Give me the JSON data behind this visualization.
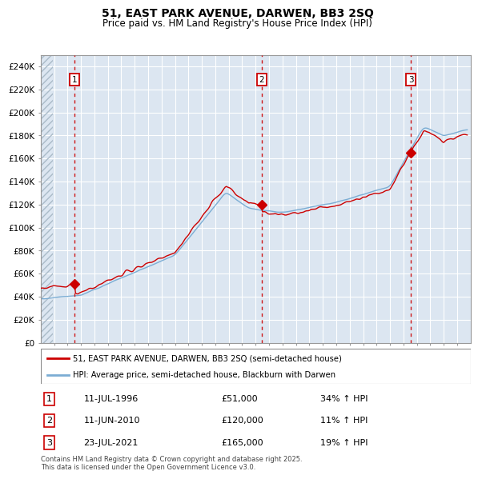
{
  "title1": "51, EAST PARK AVENUE, DARWEN, BB3 2SQ",
  "title2": "Price paid vs. HM Land Registry's House Price Index (HPI)",
  "ylim": [
    0,
    250000
  ],
  "yticks": [
    0,
    20000,
    40000,
    60000,
    80000,
    100000,
    120000,
    140000,
    160000,
    180000,
    200000,
    220000,
    240000
  ],
  "ytick_labels": [
    "£0",
    "£20K",
    "£40K",
    "£60K",
    "£80K",
    "£100K",
    "£120K",
    "£140K",
    "£160K",
    "£180K",
    "£200K",
    "£220K",
    "£240K"
  ],
  "xlim_start": 1994.0,
  "xlim_end": 2026.0,
  "plot_bg_color": "#dce6f1",
  "grid_color": "#ffffff",
  "red_color": "#cc0000",
  "blue_color": "#7badd4",
  "sale1_year": 1996.53,
  "sale1_price": 51000,
  "sale2_year": 2010.44,
  "sale2_price": 120000,
  "sale3_year": 2021.55,
  "sale3_price": 165000,
  "legend1": "51, EAST PARK AVENUE, DARWEN, BB3 2SQ (semi-detached house)",
  "legend2": "HPI: Average price, semi-detached house, Blackburn with Darwen",
  "table_entries": [
    {
      "num": "1",
      "date": "11-JUL-1996",
      "price": "£51,000",
      "change": "34% ↑ HPI"
    },
    {
      "num": "2",
      "date": "11-JUN-2010",
      "price": "£120,000",
      "change": "11% ↑ HPI"
    },
    {
      "num": "3",
      "date": "23-JUL-2021",
      "price": "£165,000",
      "change": "19% ↑ HPI"
    }
  ],
  "footer": "Contains HM Land Registry data © Crown copyright and database right 2025.\nThis data is licensed under the Open Government Licence v3.0."
}
